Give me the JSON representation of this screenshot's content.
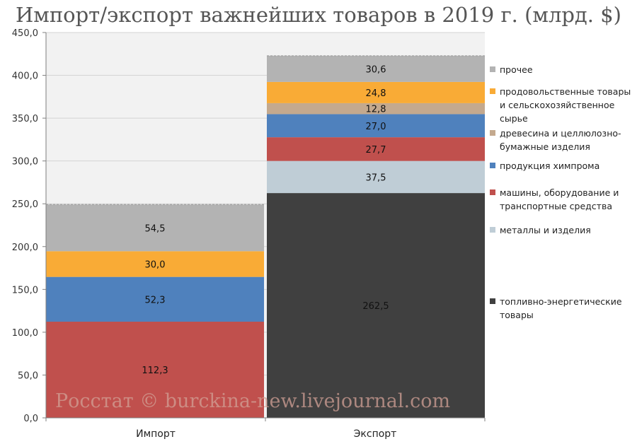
{
  "chart_data": {
    "type": "bar",
    "stacked": true,
    "title": "Импорт/экспорт важнейших товаров в 2019 г. (млрд. $)",
    "categories": [
      "Импорт",
      "Экспорт"
    ],
    "ylim": [
      0,
      450
    ],
    "yticks": [
      "0,0",
      "50,0",
      "100,0",
      "150,0",
      "200,0",
      "250,0",
      "300,0",
      "350,0",
      "400,0",
      "450,0"
    ],
    "grid": true,
    "legend_position": "right",
    "series": [
      {
        "name": "топливно-энергетические товары",
        "color": "#404040",
        "values": [
          0,
          262.5
        ],
        "labels": [
          "",
          "262,5"
        ]
      },
      {
        "name": "металлы и изделия",
        "color": "#bfcdd6",
        "values": [
          0,
          37.5
        ],
        "labels": [
          "",
          "37,5"
        ]
      },
      {
        "name": "машины, оборудование и транспортные средства",
        "color": "#c0504d",
        "values": [
          112.3,
          27.7
        ],
        "labels": [
          "112,3",
          "27,7"
        ]
      },
      {
        "name": "продукция химпрома",
        "color": "#4f81bd",
        "values": [
          52.3,
          27.0
        ],
        "labels": [
          "52,3",
          "27,0"
        ]
      },
      {
        "name": "древесина и  целлюлозно-бумажные изделия",
        "color": "#c4a98e",
        "values": [
          0,
          12.8
        ],
        "labels": [
          "",
          "12,8"
        ]
      },
      {
        "name": "продовольственные товары и сельскохозяйственное сырье",
        "color": "#f9ab36",
        "values": [
          30.0,
          24.8
        ],
        "labels": [
          "30,0",
          "24,8"
        ]
      },
      {
        "name": "прочее",
        "color": "#b3b3b3",
        "values": [
          54.5,
          30.6
        ],
        "labels": [
          "54,5",
          "30,6"
        ]
      }
    ]
  },
  "legend": [
    {
      "lines": [
        "прочее"
      ],
      "color": "#b3b3b3"
    },
    {
      "lines": [
        "продовольственные товары",
        "и сельскохозяйственное",
        "сырье"
      ],
      "color": "#f9ab36"
    },
    {
      "lines": [
        "древесина и  целлюлозно-",
        "бумажные изделия"
      ],
      "color": "#c4a98e"
    },
    {
      "lines": [
        "продукция химпрома"
      ],
      "color": "#4f81bd"
    },
    {
      "lines": [
        "машины, оборудование и",
        "транспортные средства"
      ],
      "color": "#c0504d"
    },
    {
      "lines": [
        "металлы и изделия"
      ],
      "color": "#bfcdd6"
    },
    {
      "lines": [
        "топливно-энергетические",
        "товары"
      ],
      "color": "#404040"
    }
  ],
  "watermark": "Росстат © burckina-new.livejournal.com"
}
